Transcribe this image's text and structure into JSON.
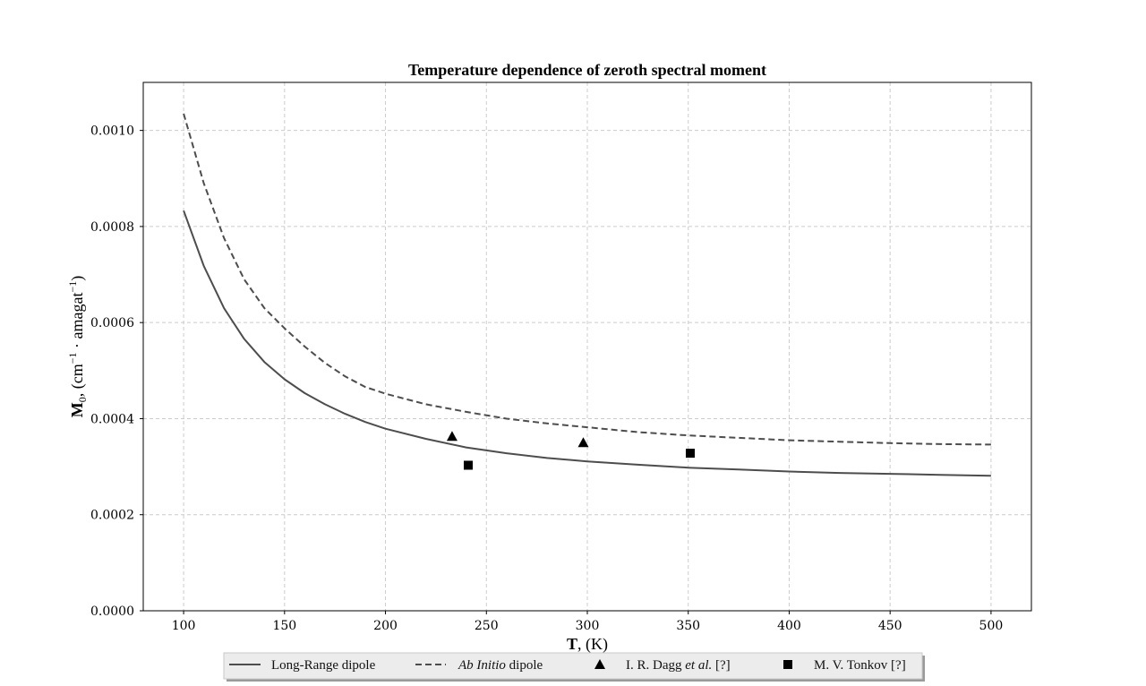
{
  "chart_data": {
    "type": "line",
    "title": "Temperature dependence of zeroth spectral moment",
    "xlabel": {
      "bold": "T",
      "rest": ", (K)"
    },
    "ylabel": {
      "bold": "M",
      "sub": "0",
      "rest1": ", (cm",
      "sup": "−1",
      "rest2": " · amagat",
      "sup2": "−1",
      "rest3": ")"
    },
    "xlim": [
      80,
      520
    ],
    "ylim": [
      0,
      0.0011
    ],
    "xticks": [
      100,
      150,
      200,
      250,
      300,
      350,
      400,
      450,
      500
    ],
    "xtick_labels": [
      "100",
      "150",
      "200",
      "250",
      "300",
      "350",
      "400",
      "450",
      "500"
    ],
    "yticks": [
      0,
      0.0002,
      0.0004,
      0.0006,
      0.0008,
      0.001
    ],
    "ytick_labels": [
      "0.0000",
      "0.0002",
      "0.0004",
      "0.0006",
      "0.0008",
      "0.0010"
    ],
    "grid": true,
    "legend_position": "below plot, centered",
    "series": [
      {
        "name": "Long-Range dipole",
        "style": "solid",
        "color": "#4d4d4d",
        "x": [
          100,
          110,
          120,
          130,
          140,
          150,
          160,
          170,
          180,
          190,
          200,
          220,
          240,
          260,
          280,
          300,
          325,
          350,
          375,
          400,
          425,
          450,
          475,
          500
        ],
        "y": [
          0.000833,
          0.000718,
          0.00063,
          0.000566,
          0.000518,
          0.000482,
          0.000453,
          0.00043,
          0.00041,
          0.000393,
          0.000379,
          0.000358,
          0.00034,
          0.000328,
          0.000318,
          0.000311,
          0.000304,
          0.000298,
          0.000294,
          0.00029,
          0.000287,
          0.000285,
          0.000283,
          0.000281
        ]
      },
      {
        "name": "Ab Initio dipole",
        "name_italic": "Ab Initio",
        "name_rest": " dipole",
        "style": "dashed",
        "color": "#4d4d4d",
        "x": [
          100,
          110,
          120,
          130,
          140,
          150,
          160,
          170,
          180,
          190,
          200,
          220,
          240,
          260,
          280,
          300,
          325,
          350,
          375,
          400,
          425,
          450,
          475,
          500
        ],
        "y": [
          0.001035,
          0.00089,
          0.000776,
          0.00069,
          0.00063,
          0.000588,
          0.00055,
          0.000516,
          0.000488,
          0.000466,
          0.000452,
          0.00043,
          0.000414,
          0.0004,
          0.00039,
          0.000382,
          0.000372,
          0.000365,
          0.00036,
          0.000355,
          0.000352,
          0.000349,
          0.000347,
          0.000346
        ]
      },
      {
        "name": "I. R. Dagg et al. [?]",
        "name_pre": "I. R. Dagg ",
        "name_italic": "et al.",
        "name_rest": " [?]",
        "style": "marker-triangle",
        "color": "#000000",
        "x": [
          233,
          298
        ],
        "y": [
          0.000363,
          0.00035
        ]
      },
      {
        "name": "M. V. Tonkov [?]",
        "style": "marker-square",
        "color": "#000000",
        "x": [
          241,
          351
        ],
        "y": [
          0.000303,
          0.000328
        ]
      }
    ]
  }
}
